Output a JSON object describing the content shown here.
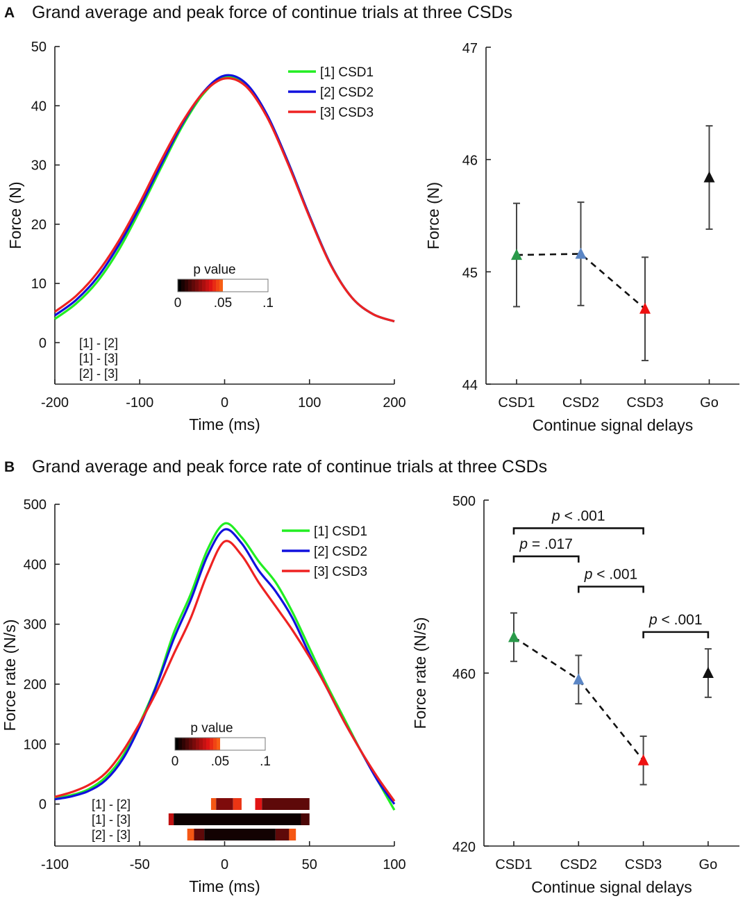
{
  "figure": {
    "panels": [
      {
        "letter": "A",
        "title": "Grand average and peak force of continue trials at three CSDs"
      },
      {
        "letter": "B",
        "title": "Grand average and peak force rate of continue trials at three CSDs"
      }
    ],
    "legend": [
      "[1] CSD1",
      "[2] CSD2",
      "[3] CSD3"
    ],
    "colorbar": {
      "label": "p value",
      "ticks": [
        "0",
        ".05",
        ".1"
      ]
    },
    "comparisons": [
      "[1] - [2]",
      "[1] - [3]",
      "[2] - [3]"
    ]
  },
  "colors": {
    "CSD1": "#22ee22",
    "CSD2": "#1111dd",
    "CSD3": "#ee2222",
    "marker_CSD1": "#2a9a4a",
    "marker_CSD2": "#5b86c5",
    "marker_CSD3": "#ee1111",
    "marker_Go": "#111111"
  },
  "chart_data": [
    {
      "id": "A-left",
      "type": "line",
      "xlabel": "Time (ms)",
      "ylabel": "Force (N)",
      "xlim": [
        -200,
        200
      ],
      "ylim": [
        -7,
        50
      ],
      "xticks": [
        -200,
        -100,
        0,
        100,
        200
      ],
      "yticks": [
        0,
        10,
        20,
        30,
        40,
        50
      ],
      "x": [
        -200,
        -175,
        -150,
        -125,
        -100,
        -75,
        -50,
        -25,
        0,
        25,
        50,
        75,
        100,
        125,
        150,
        175,
        200
      ],
      "series": [
        {
          "name": "[1] CSD1",
          "values": [
            4.0,
            6.6,
            10.3,
            15.6,
            22.3,
            29.5,
            36.5,
            42.0,
            44.9,
            43.6,
            38.4,
            30.4,
            21.4,
            13.2,
            7.6,
            4.8,
            3.6
          ]
        },
        {
          "name": "[2] CSD2",
          "values": [
            4.6,
            7.2,
            11.0,
            16.4,
            22.9,
            30.0,
            36.9,
            42.3,
            45.1,
            43.8,
            38.5,
            30.4,
            21.4,
            13.2,
            7.6,
            4.8,
            3.6
          ]
        },
        {
          "name": "[3] CSD3",
          "values": [
            5.2,
            7.9,
            11.8,
            17.1,
            23.6,
            30.7,
            37.2,
            42.2,
            44.6,
            43.3,
            38.1,
            30.1,
            21.2,
            13.1,
            7.6,
            4.8,
            3.6
          ]
        }
      ],
      "significance": []
    },
    {
      "id": "A-right",
      "type": "scatter",
      "xlabel": "Continue signal delays",
      "ylabel": "Force (N)",
      "categories": [
        "CSD1",
        "CSD2",
        "CSD3",
        "Go"
      ],
      "ylim": [
        44,
        47
      ],
      "yticks": [
        44,
        45,
        46,
        47
      ],
      "values": [
        45.15,
        45.16,
        44.67,
        45.84
      ],
      "errors": [
        0.46,
        0.46,
        0.46,
        0.46
      ],
      "dashed_connect": [
        "CSD1",
        "CSD2",
        "CSD3"
      ],
      "brackets": []
    },
    {
      "id": "B-left",
      "type": "line",
      "xlabel": "Time (ms)",
      "ylabel": "Force rate (N/s)",
      "xlim": [
        -100,
        100
      ],
      "ylim": [
        -70,
        500
      ],
      "xticks": [
        -100,
        -50,
        0,
        50,
        100
      ],
      "yticks": [
        0,
        100,
        200,
        300,
        400,
        500
      ],
      "x": [
        -100,
        -90,
        -80,
        -70,
        -60,
        -50,
        -40,
        -30,
        -20,
        -10,
        0,
        10,
        20,
        30,
        40,
        50,
        60,
        70,
        80,
        90,
        100
      ],
      "series": [
        {
          "name": "[1] CSD1",
          "values": [
            10,
            15,
            25,
            45,
            80,
            135,
            200,
            285,
            350,
            425,
            468,
            445,
            405,
            370,
            320,
            260,
            200,
            145,
            90,
            40,
            -10
          ]
        },
        {
          "name": "[2] CSD2",
          "values": [
            8,
            13,
            22,
            40,
            75,
            130,
            198,
            275,
            340,
            415,
            458,
            435,
            390,
            355,
            310,
            250,
            195,
            140,
            90,
            40,
            0
          ]
        },
        {
          "name": "[3] CSD3",
          "values": [
            12,
            20,
            32,
            52,
            88,
            135,
            188,
            250,
            310,
            385,
            438,
            415,
            370,
            330,
            290,
            245,
            195,
            140,
            90,
            45,
            5
          ]
        }
      ],
      "significance": [
        {
          "comparison": "[1] - [2]",
          "segments": [
            {
              "x0": -8,
              "x1": -5,
              "p": 0.045
            },
            {
              "x0": -5,
              "x1": 5,
              "p": 0.02
            },
            {
              "x0": 5,
              "x1": 10,
              "p": 0.04
            },
            {
              "x0": 18,
              "x1": 22,
              "p": 0.035
            },
            {
              "x0": 22,
              "x1": 50,
              "p": 0.015
            }
          ]
        },
        {
          "comparison": "[1] - [3]",
          "segments": [
            {
              "x0": -33,
              "x1": -30,
              "p": 0.03
            },
            {
              "x0": -30,
              "x1": 45,
              "p": 0.002
            },
            {
              "x0": 45,
              "x1": 50,
              "p": 0.012
            }
          ]
        },
        {
          "comparison": "[2] - [3]",
          "segments": [
            {
              "x0": -22,
              "x1": -18,
              "p": 0.045
            },
            {
              "x0": -18,
              "x1": -12,
              "p": 0.015
            },
            {
              "x0": -12,
              "x1": 30,
              "p": 0.003
            },
            {
              "x0": 30,
              "x1": 38,
              "p": 0.015
            },
            {
              "x0": 38,
              "x1": 42,
              "p": 0.045
            }
          ]
        }
      ]
    },
    {
      "id": "B-right",
      "type": "scatter",
      "xlabel": "Continue signal delays",
      "ylabel": "Force rate (N/s)",
      "categories": [
        "CSD1",
        "CSD2",
        "CSD3",
        "Go"
      ],
      "ylim": [
        420,
        500
      ],
      "yticks": [
        420,
        460,
        500
      ],
      "values": [
        468.3,
        458.5,
        439.8,
        460.0
      ],
      "errors": [
        5.6,
        5.6,
        5.6,
        5.6
      ],
      "dashed_connect": [
        "CSD1",
        "CSD2",
        "CSD3"
      ],
      "brackets": [
        {
          "from": "CSD1",
          "to": "CSD3",
          "y": 493.5,
          "label": "p < .001"
        },
        {
          "from": "CSD1",
          "to": "CSD2",
          "y": 487.0,
          "label": "p = .017"
        },
        {
          "from": "CSD2",
          "to": "CSD3",
          "y": 480.0,
          "label": "p < .001"
        },
        {
          "from": "CSD3",
          "to": "Go",
          "y": 469.5,
          "label": "p < .001"
        }
      ]
    }
  ]
}
